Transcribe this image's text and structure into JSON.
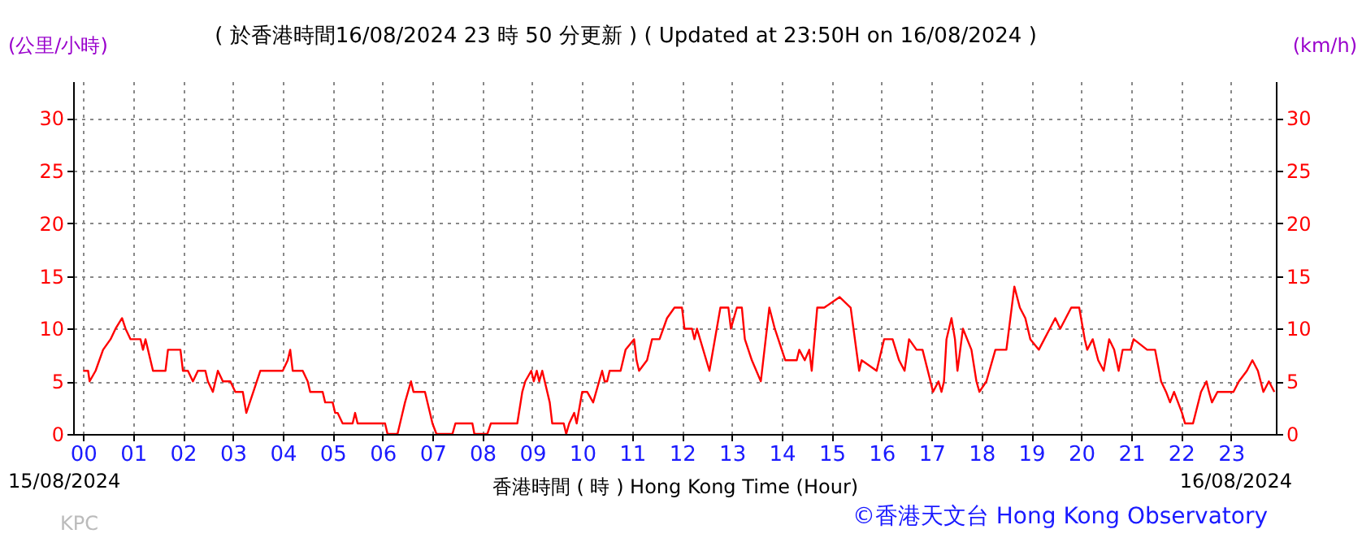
{
  "chart_data": {
    "type": "line",
    "title": "( 於香港時間16/08/2024 23 時 50 分更新 ) ( Updated at 23:50H on 16/08/2024 )",
    "xlabel": "香港時間 ( 時 ) Hong Kong Time (Hour)",
    "ylabel": "(公里/小時)",
    "y2label": "(km/h)",
    "annotations": [
      "15/08/2024",
      "16/08/2024",
      "KPC",
      "©香港天文台 Hong Kong Observatory"
    ],
    "xlim": [
      -0.2,
      23.9
    ],
    "ylim": [
      0,
      33.5
    ],
    "y2lim": [
      0,
      33.5
    ],
    "xticks": [
      {
        "value": 0,
        "label": "00"
      },
      {
        "value": 1,
        "label": "01"
      },
      {
        "value": 2,
        "label": "02"
      },
      {
        "value": 3,
        "label": "03"
      },
      {
        "value": 4,
        "label": "04"
      },
      {
        "value": 5,
        "label": "05"
      },
      {
        "value": 6,
        "label": "06"
      },
      {
        "value": 7,
        "label": "07"
      },
      {
        "value": 8,
        "label": "08"
      },
      {
        "value": 9,
        "label": "09"
      },
      10,
      11,
      12,
      13,
      14,
      15,
      16,
      17,
      18,
      19,
      20,
      21,
      22,
      23
    ],
    "yticks": [
      0,
      5,
      10,
      15,
      20,
      25,
      30
    ],
    "y2ticks": [
      0,
      5,
      10,
      15,
      20,
      25,
      30
    ],
    "grid": true,
    "x": [
      0,
      0.1,
      0.13,
      0.25,
      0.4,
      0.55,
      0.65,
      0.78,
      0.85,
      0.95,
      1.15,
      1.2,
      1.25,
      1.3,
      1.4,
      1.65,
      1.7,
      1.95,
      2.0,
      2.1,
      2.2,
      2.3,
      2.45,
      2.5,
      2.6,
      2.7,
      2.8,
      2.95,
      3.05,
      3.2,
      3.27,
      3.55,
      3.8,
      4.0,
      4.1,
      4.15,
      4.2,
      4.4,
      4.5,
      4.55,
      4.8,
      4.85,
      5.0,
      5.05,
      5.1,
      5.2,
      5.4,
      5.45,
      5.5,
      6.05,
      6.1,
      6.3,
      6.45,
      6.57,
      6.62,
      6.85,
      6.95,
      7.0,
      7.08,
      7.4,
      7.46,
      7.8,
      7.84,
      8.1,
      8.17,
      8.7,
      8.8,
      8.86,
      8.98,
      9.03,
      9.09,
      9.14,
      9.2,
      9.35,
      9.4,
      9.63,
      9.68,
      9.74,
      9.84,
      9.89,
      10.0,
      10.1,
      10.22,
      10.4,
      10.45,
      10.5,
      10.55,
      10.77,
      10.87,
      11.04,
      11.09,
      11.14,
      11.3,
      11.4,
      11.55,
      11.7,
      11.85,
      12.0,
      12.05,
      12.2,
      12.25,
      12.3,
      12.55,
      12.77,
      12.93,
      12.98,
      13.1,
      13.2,
      13.26,
      13.4,
      13.58,
      13.75,
      13.86,
      14.07,
      14.3,
      14.35,
      14.46,
      14.55,
      14.6,
      14.71,
      14.85,
      15.16,
      15.38,
      15.55,
      15.6,
      15.9,
      16.05,
      16.22,
      16.35,
      16.46,
      16.55,
      16.7,
      16.82,
      16.98,
      17.03,
      17.14,
      17.2,
      17.25,
      17.3,
      17.4,
      17.47,
      17.52,
      17.63,
      17.8,
      17.9,
      17.96,
      18.1,
      18.28,
      18.5,
      18.66,
      18.77,
      18.88,
      18.98,
      19.15,
      19.26,
      19.37,
      19.48,
      19.58,
      19.69,
      19.8,
      19.96,
      20.07,
      20.12,
      20.23,
      20.34,
      20.45,
      20.56,
      20.66,
      20.75,
      20.83,
      20.99,
      21.05,
      21.32,
      21.48,
      21.6,
      21.7,
      21.78,
      21.86,
      22.02,
      22.08,
      22.24,
      22.4,
      22.51,
      22.56,
      22.62,
      22.73,
      23.05,
      23.16,
      23.32,
      23.43,
      23.54,
      23.65,
      23.76,
      23.87
    ],
    "series": [
      {
        "color": "#ff0000",
        "values": [
          6,
          6,
          5,
          6,
          8,
          9,
          10,
          11,
          10,
          9,
          9,
          8,
          9,
          8,
          6,
          6,
          8,
          8,
          6,
          6,
          5,
          6,
          6,
          5,
          4,
          6,
          5,
          5,
          4,
          4,
          2,
          6,
          6,
          6,
          7,
          8,
          6,
          6,
          5,
          4,
          4,
          3,
          3,
          2,
          2,
          1,
          1,
          2,
          1,
          1,
          0,
          0,
          3,
          5,
          4,
          4,
          2,
          1,
          0,
          0,
          1,
          1,
          0,
          0,
          1,
          1,
          4,
          5,
          6,
          5,
          6,
          5,
          6,
          3,
          1,
          1,
          0,
          1,
          2,
          1,
          4,
          4,
          3,
          6,
          5,
          5,
          6,
          6,
          8,
          9,
          7,
          6,
          7,
          9,
          9,
          11,
          12,
          12,
          10,
          10,
          9,
          10,
          6,
          12,
          12,
          10,
          12,
          12,
          9,
          7,
          5,
          12,
          10,
          7,
          7,
          8,
          7,
          8,
          6,
          12,
          12,
          13,
          12,
          6,
          7,
          6,
          9,
          9,
          7,
          6,
          9,
          8,
          8,
          5,
          4,
          5,
          4,
          5,
          9,
          11,
          9,
          6,
          10,
          8,
          5,
          4,
          5,
          8,
          8,
          14,
          12,
          11,
          9,
          8,
          9,
          10,
          11,
          10,
          11,
          12,
          12,
          9,
          8,
          9,
          7,
          6,
          9,
          8,
          6,
          8,
          8,
          9,
          8,
          8,
          5,
          4,
          3,
          4,
          2,
          1,
          1,
          4,
          5,
          4,
          3,
          4,
          4,
          5,
          6,
          7,
          6,
          4,
          5,
          4
        ]
      }
    ]
  }
}
